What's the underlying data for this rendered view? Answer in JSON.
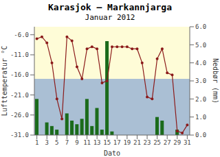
{
  "chart_data": {
    "type": "combo",
    "title": "Karasjok – Markannjarga",
    "subtitle": "Januar 2012",
    "xlabel": "Dato",
    "ylabel": "Lufttemperatur °C",
    "y2label": "Nedbør (mm)",
    "x": [
      1,
      2,
      3,
      4,
      5,
      6,
      7,
      8,
      9,
      10,
      11,
      12,
      13,
      14,
      15,
      16,
      17,
      18,
      19,
      20,
      21,
      22,
      23,
      24,
      25,
      26,
      27,
      28,
      29,
      30,
      31
    ],
    "series": [
      {
        "type": "bar",
        "axis": "y2",
        "color": "#1B6B1B",
        "values": [
          2.0,
          0.0,
          0.7,
          0.5,
          0.3,
          0.0,
          1.2,
          0.8,
          0.6,
          0.9,
          2.0,
          0.5,
          1.5,
          0.3,
          5.2,
          0.2,
          0.0,
          0.0,
          0.0,
          0.0,
          0.0,
          0.0,
          0.0,
          0.0,
          1.0,
          0.8,
          0.0,
          0.0,
          0.3,
          0.0,
          0.0
        ]
      },
      {
        "type": "line",
        "axis": "y",
        "color": "#8B1A1A",
        "marker": "circle",
        "values": [
          -7.0,
          -6.5,
          -8.0,
          -13.0,
          -22.0,
          -27.0,
          -6.5,
          -7.5,
          -14.0,
          -17.0,
          -9.5,
          -9.0,
          -9.5,
          -18.0,
          -17.5,
          -9.0,
          -9.0,
          -9.0,
          -9.0,
          -9.5,
          -9.5,
          -13.0,
          -21.5,
          -22.0,
          -12.0,
          -9.5,
          -15.5,
          -16.0,
          -30.0,
          -30.5,
          -28.5
        ]
      }
    ],
    "xlim": [
      0.5,
      31.5
    ],
    "xticks": [
      1,
      3,
      5,
      7,
      9,
      11,
      13,
      15,
      17,
      19,
      21,
      23,
      25,
      27,
      29,
      31
    ],
    "ylim": [
      -31.0,
      -4.0
    ],
    "yticks": [
      {
        "value": -31.0,
        "label": "-31.0"
      },
      {
        "value": -26.0,
        "label": "-26.0"
      },
      {
        "value": -21.0,
        "label": "-21.0"
      },
      {
        "value": -16.0,
        "label": "-16.0"
      },
      {
        "value": -11.0,
        "label": "-11.0"
      },
      {
        "value": -6.0,
        "label": "-6.0"
      }
    ],
    "y2lim": [
      0.0,
      6.0
    ],
    "y2ticks": [
      {
        "value": 0.0,
        "label": "0.0"
      },
      {
        "value": 1.0,
        "label": "1.0"
      },
      {
        "value": 2.0,
        "label": "2.0"
      },
      {
        "value": 3.0,
        "label": "3.0"
      },
      {
        "value": 4.0,
        "label": "4.0"
      },
      {
        "value": 5.0,
        "label": "5.0"
      },
      {
        "value": 6.0,
        "label": "6.0"
      }
    ],
    "bands": [
      {
        "from": -31.0,
        "to": -17.0,
        "color": "#AABFD4"
      },
      {
        "from": -17.0,
        "to": -4.0,
        "color": "#FEFCD7"
      }
    ]
  }
}
